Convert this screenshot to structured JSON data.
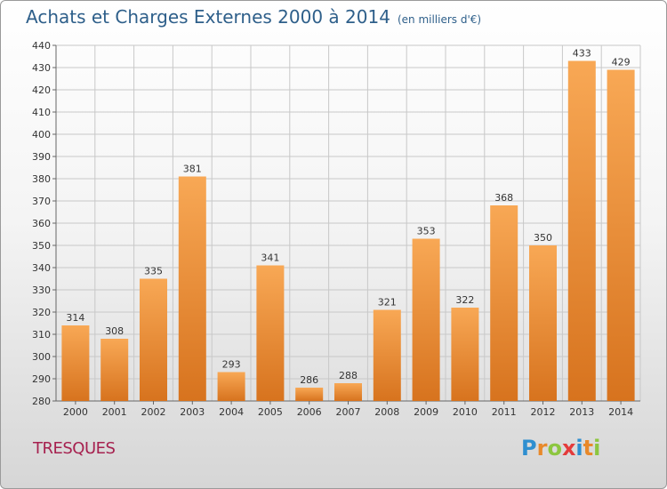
{
  "header": {
    "title": "Achats et Charges Externes 2000 à 2014",
    "subtitle": "(en milliers d'€)"
  },
  "footer": {
    "town": "TRESQUES",
    "brand": "Proxiti",
    "brand_letters": [
      {
        "ch": "P",
        "color": "#2f8fd0"
      },
      {
        "ch": "r",
        "color": "#e8892a"
      },
      {
        "ch": "o",
        "color": "#8cc63f"
      },
      {
        "ch": "x",
        "color": "#e43b3b"
      },
      {
        "ch": "i",
        "color": "#2f8fd0"
      },
      {
        "ch": "t",
        "color": "#e8892a"
      },
      {
        "ch": "i",
        "color": "#8cc63f"
      }
    ]
  },
  "colors": {
    "bar_light": "#f8a855",
    "bar_dark": "#d7731e",
    "grid": "#c8c8c8",
    "axis": "#666666"
  },
  "chart_data": {
    "type": "bar",
    "categories": [
      "2000",
      "2001",
      "2002",
      "2003",
      "2004",
      "2005",
      "2006",
      "2007",
      "2008",
      "2009",
      "2010",
      "2011",
      "2012",
      "2013",
      "2014"
    ],
    "values": [
      314,
      308,
      335,
      381,
      293,
      341,
      286,
      288,
      321,
      353,
      322,
      368,
      350,
      433,
      429
    ],
    "title": "Achats et Charges Externes 2000 à 2014",
    "subtitle": "(en milliers d'€)",
    "ylim": [
      280,
      440
    ],
    "yticks": [
      280,
      290,
      300,
      310,
      320,
      330,
      340,
      350,
      360,
      370,
      380,
      390,
      400,
      410,
      420,
      430,
      440
    ],
    "grid": true
  }
}
